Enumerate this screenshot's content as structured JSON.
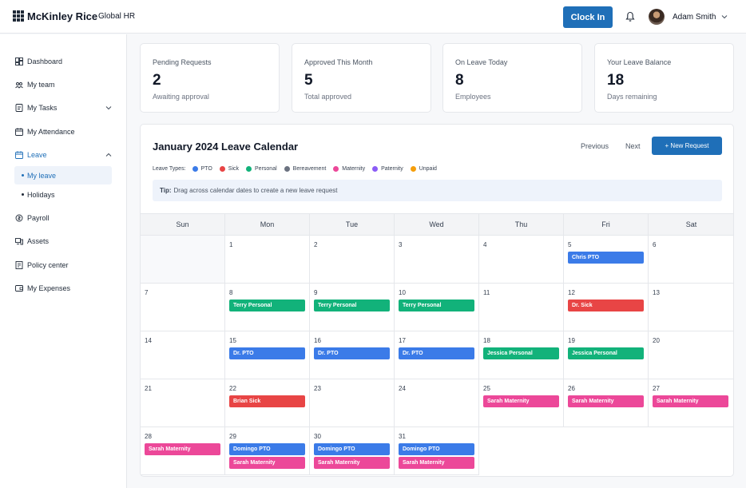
{
  "header": {
    "brand": "McKinley Rice",
    "module": "Global HR",
    "clock_in_label": "Clock In",
    "user_name": "Adam Smith"
  },
  "sidebar": {
    "items": [
      {
        "label": "Dashboard",
        "icon": "dashboard-icon"
      },
      {
        "label": "My team",
        "icon": "team-icon"
      },
      {
        "label": "My Tasks",
        "icon": "tasks-icon"
      },
      {
        "label": "My Attendance",
        "icon": "calendar-icon"
      },
      {
        "label": "Leave",
        "icon": "calendar-icon"
      },
      {
        "label": "Payroll",
        "icon": "payroll-icon"
      },
      {
        "label": "Assets",
        "icon": "assets-icon"
      },
      {
        "label": "Policy center",
        "icon": "policy-icon"
      },
      {
        "label": "My Expenses",
        "icon": "wallet-icon"
      }
    ],
    "leave_sub": [
      {
        "label": "My leave"
      },
      {
        "label": "Holidays"
      }
    ]
  },
  "stats": [
    {
      "label": "Pending Requests",
      "value": "2",
      "sub": "Awaiting approval"
    },
    {
      "label": "Approved This Month",
      "value": "5",
      "sub": "Total approved"
    },
    {
      "label": "On Leave Today",
      "value": "8",
      "sub": "Employees"
    },
    {
      "label": "Your Leave Balance",
      "value": "18",
      "sub": "Days remaining"
    }
  ],
  "calendar": {
    "title": "January 2024 Leave Calendar",
    "prev_label": "Previous",
    "next_label": "Next",
    "new_request_label": "+ New Request",
    "legend_title": "Leave Types:",
    "legend": [
      {
        "label": "PTO",
        "color": "#3b7be8"
      },
      {
        "label": "Sick",
        "color": "#e84545"
      },
      {
        "label": "Personal",
        "color": "#12b27a"
      },
      {
        "label": "Bereavement",
        "color": "#6b7280"
      },
      {
        "label": "Maternity",
        "color": "#ec4899"
      },
      {
        "label": "Paternity",
        "color": "#8b5cf6"
      },
      {
        "label": "Unpaid",
        "color": "#f59e0b"
      }
    ],
    "tip_label": "Tip:",
    "tip_text": "Drag across calendar dates to create a new leave request",
    "weekdays": [
      "Sun",
      "Mon",
      "Tue",
      "Wed",
      "Thu",
      "Fri",
      "Sat"
    ],
    "weeks": [
      [
        null,
        {
          "day": "1",
          "events": []
        },
        {
          "day": "2",
          "events": []
        },
        {
          "day": "3",
          "events": []
        },
        {
          "day": "4",
          "events": []
        },
        {
          "day": "5",
          "events": [
            {
              "label": "Chris PTO",
              "type": "PTO"
            }
          ]
        },
        {
          "day": "6",
          "events": []
        }
      ],
      [
        {
          "day": "7",
          "events": []
        },
        {
          "day": "8",
          "events": [
            {
              "label": "Terry Personal",
              "type": "Personal"
            }
          ]
        },
        {
          "day": "9",
          "events": [
            {
              "label": "Terry Personal",
              "type": "Personal"
            }
          ]
        },
        {
          "day": "10",
          "events": [
            {
              "label": "Terry Personal",
              "type": "Personal"
            }
          ]
        },
        {
          "day": "11",
          "events": []
        },
        {
          "day": "12",
          "events": [
            {
              "label": "Dr. Sick",
              "type": "Sick"
            }
          ]
        },
        {
          "day": "13",
          "events": []
        }
      ],
      [
        {
          "day": "14",
          "events": []
        },
        {
          "day": "15",
          "events": [
            {
              "label": "Dr. PTO",
              "type": "PTO"
            }
          ]
        },
        {
          "day": "16",
          "events": [
            {
              "label": "Dr. PTO",
              "type": "PTO"
            }
          ]
        },
        {
          "day": "17",
          "events": [
            {
              "label": "Dr. PTO",
              "type": "PTO"
            }
          ]
        },
        {
          "day": "18",
          "events": [
            {
              "label": "Jessica Personal",
              "type": "Personal"
            }
          ]
        },
        {
          "day": "19",
          "events": [
            {
              "label": "Jessica Personal",
              "type": "Personal"
            }
          ]
        },
        {
          "day": "20",
          "events": []
        }
      ],
      [
        {
          "day": "21",
          "events": []
        },
        {
          "day": "22",
          "events": [
            {
              "label": "Brian Sick",
              "type": "Sick"
            }
          ]
        },
        {
          "day": "23",
          "events": []
        },
        {
          "day": "24",
          "events": []
        },
        {
          "day": "25",
          "events": [
            {
              "label": "Sarah Maternity",
              "type": "Maternity"
            }
          ]
        },
        {
          "day": "26",
          "events": [
            {
              "label": "Sarah Maternity",
              "type": "Maternity"
            }
          ]
        },
        {
          "day": "27",
          "events": [
            {
              "label": "Sarah Maternity",
              "type": "Maternity"
            }
          ]
        }
      ],
      [
        {
          "day": "28",
          "events": [
            {
              "label": "Sarah Maternity",
              "type": "Maternity"
            }
          ]
        },
        {
          "day": "29",
          "events": [
            {
              "label": "Domingo PTO",
              "type": "PTO"
            },
            {
              "label": "Sarah Maternity",
              "type": "Maternity"
            }
          ]
        },
        {
          "day": "30",
          "events": [
            {
              "label": "Domingo PTO",
              "type": "PTO"
            },
            {
              "label": "Sarah Maternity",
              "type": "Maternity"
            }
          ]
        },
        {
          "day": "31",
          "events": [
            {
              "label": "Domingo PTO",
              "type": "PTO"
            },
            {
              "label": "Sarah Maternity",
              "type": "Maternity"
            }
          ]
        },
        null,
        null,
        null
      ]
    ]
  }
}
